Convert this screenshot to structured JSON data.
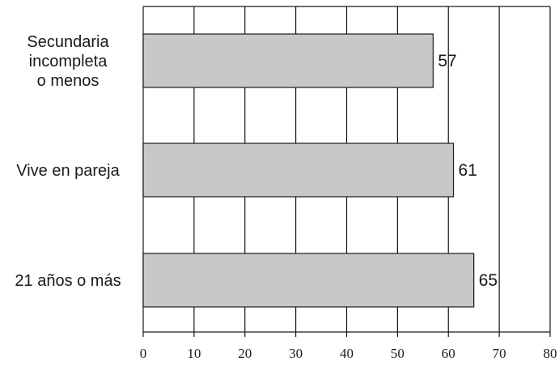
{
  "chart_data": {
    "type": "bar",
    "orientation": "horizontal",
    "categories": [
      [
        "Secundaria",
        "incompleta",
        "o menos"
      ],
      [
        "Vive en pareja"
      ],
      [
        "21 años o más"
      ]
    ],
    "values": [
      57,
      61,
      65
    ],
    "xlim": [
      0,
      80
    ],
    "xticks": [
      0,
      10,
      20,
      30,
      40,
      50,
      60,
      70,
      80
    ],
    "grid": "vertical",
    "data_labels": true,
    "title": "",
    "xlabel": "",
    "ylabel": "",
    "colors": {
      "bar_fill": "#c8c8c8",
      "bar_stroke": "#1a1a1a",
      "grid": "#1a1a1a"
    }
  }
}
